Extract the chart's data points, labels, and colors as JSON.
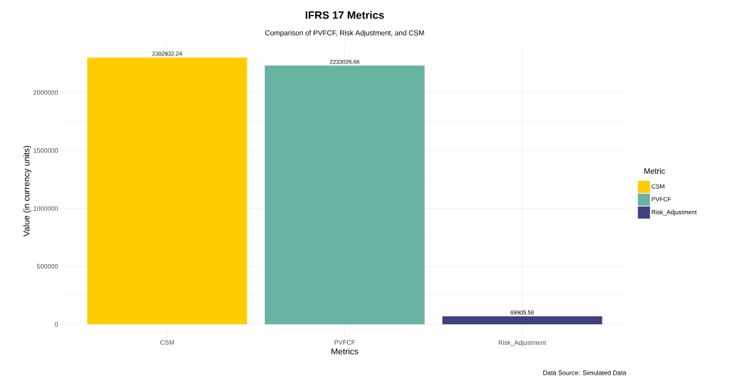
{
  "chart_data": {
    "type": "bar",
    "title": "IFRS 17 Metrics",
    "subtitle": "Comparison of PVFCF, Risk Adjustment, and CSM",
    "xlabel": "Metrics",
    "ylabel": "Value (in currency units)",
    "legend_title": "Metric",
    "categories": [
      "CSM",
      "PVFCF",
      "Risk_Adjustment"
    ],
    "series": [
      {
        "name": "CSM",
        "color": "#ffcc00",
        "values": [
          2302932.24,
          null,
          null
        ]
      },
      {
        "name": "PVFCF",
        "color": "#69b3a2",
        "values": [
          null,
          2233026.66,
          null
        ]
      },
      {
        "name": "Risk_Adjustment",
        "color": "#404080",
        "values": [
          null,
          null,
          69905.58
        ]
      }
    ],
    "ylim": [
      -115000,
      2418000
    ],
    "yticks": [
      0,
      500000,
      1000000,
      1500000,
      2000000
    ],
    "grid": true,
    "legend": "right",
    "data_labels": true,
    "annotations": [
      "Data Source: Simulated Data"
    ]
  }
}
